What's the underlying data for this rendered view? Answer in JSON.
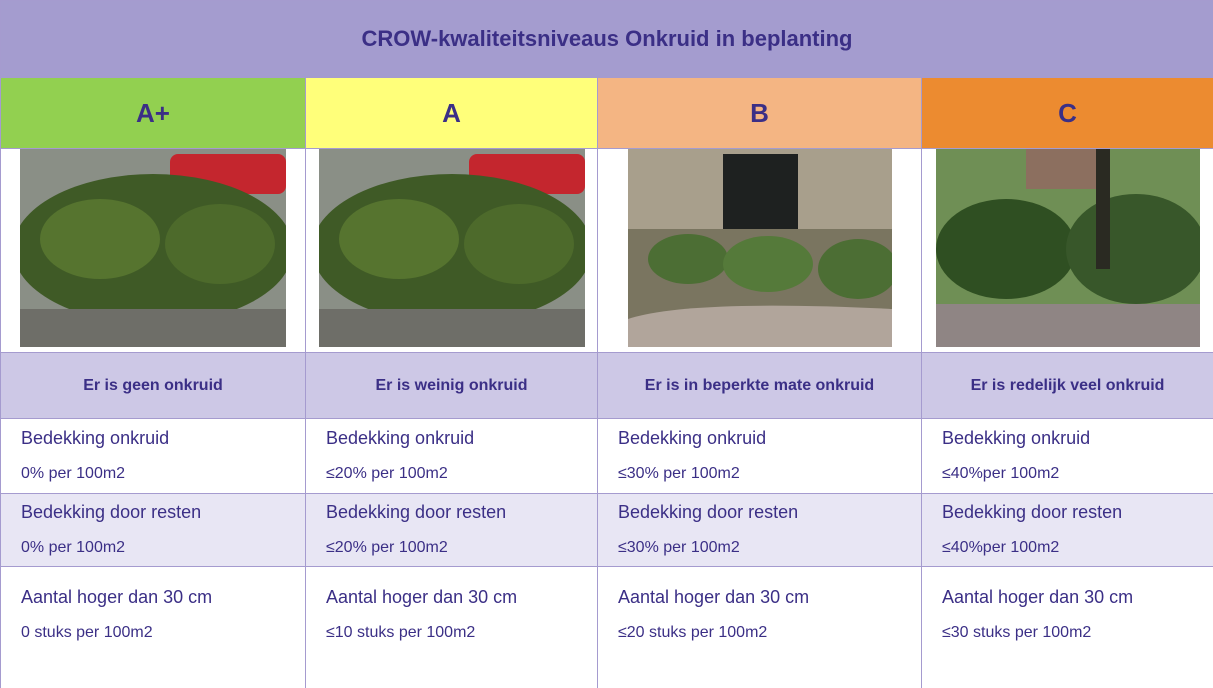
{
  "table": {
    "title": "CROW-kwaliteitsniveaus Onkruid in beplanting",
    "levels": [
      "A+",
      "A",
      "B",
      "C"
    ],
    "descriptions": [
      "Er is geen onkruid",
      "Er is weinig onkruid",
      "Er is in beperkte mate onkruid",
      "Er is redelijk veel onkruid"
    ],
    "rows": [
      {
        "label": "Bedekking onkruid",
        "cells": [
          "0% per 100m2",
          "≤20% per 100m2",
          "≤30% per 100m2",
          "≤40%per 100m2"
        ]
      },
      {
        "label": "Bedekking door resten",
        "cells": [
          "0% per 100m2",
          "≤20% per 100m2",
          "≤30% per 100m2",
          "≤40%per 100m2"
        ]
      },
      {
        "label": "Aantal hoger dan 30 cm",
        "cells": [
          "0 stuks per 100m2",
          "≤10 stuks per 100m2",
          "≤20 stuks per 100m2",
          "≤30 stuks per 100m2"
        ]
      }
    ]
  }
}
